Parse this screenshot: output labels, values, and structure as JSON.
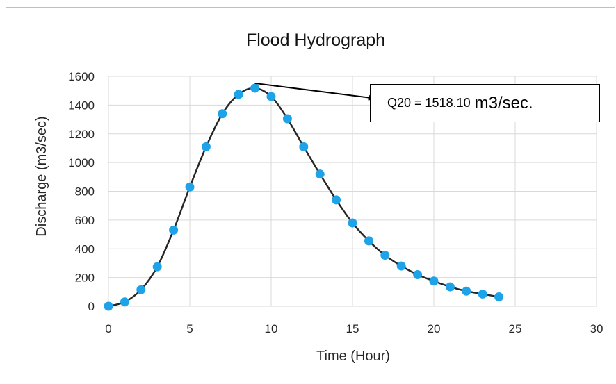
{
  "chart_data": {
    "type": "line",
    "title": "Flood Hydrograph",
    "xlabel": "Time (Hour)",
    "ylabel": "Discharge (m3/sec)",
    "xlim": [
      0,
      30
    ],
    "ylim": [
      0,
      1600
    ],
    "x_ticks": [
      0,
      5,
      10,
      15,
      20,
      25,
      30
    ],
    "y_ticks": [
      0,
      200,
      400,
      600,
      800,
      1000,
      1200,
      1400,
      1600
    ],
    "grid": true,
    "series": [
      {
        "x": [
          0,
          1,
          2,
          3,
          4,
          5,
          6,
          7,
          8,
          9,
          10,
          11,
          12,
          13,
          14,
          15,
          16,
          17,
          18,
          19,
          20,
          21,
          22,
          23,
          24
        ],
        "y": [
          0,
          30,
          115,
          275,
          530,
          830,
          1110,
          1340,
          1475,
          1518.1,
          1460,
          1305,
          1110,
          920,
          740,
          580,
          455,
          355,
          280,
          220,
          175,
          135,
          105,
          85,
          65
        ],
        "line_color": "#262626",
        "marker_color": "#1fa3e8"
      }
    ],
    "annotation": {
      "value_text": "Q20 = 1518.10",
      "unit_text": "m3/sec.",
      "arrow_from": [
        9,
        1518.1
      ],
      "arrow_to_x": 16.4,
      "arrow_to_y": 1500
    }
  }
}
